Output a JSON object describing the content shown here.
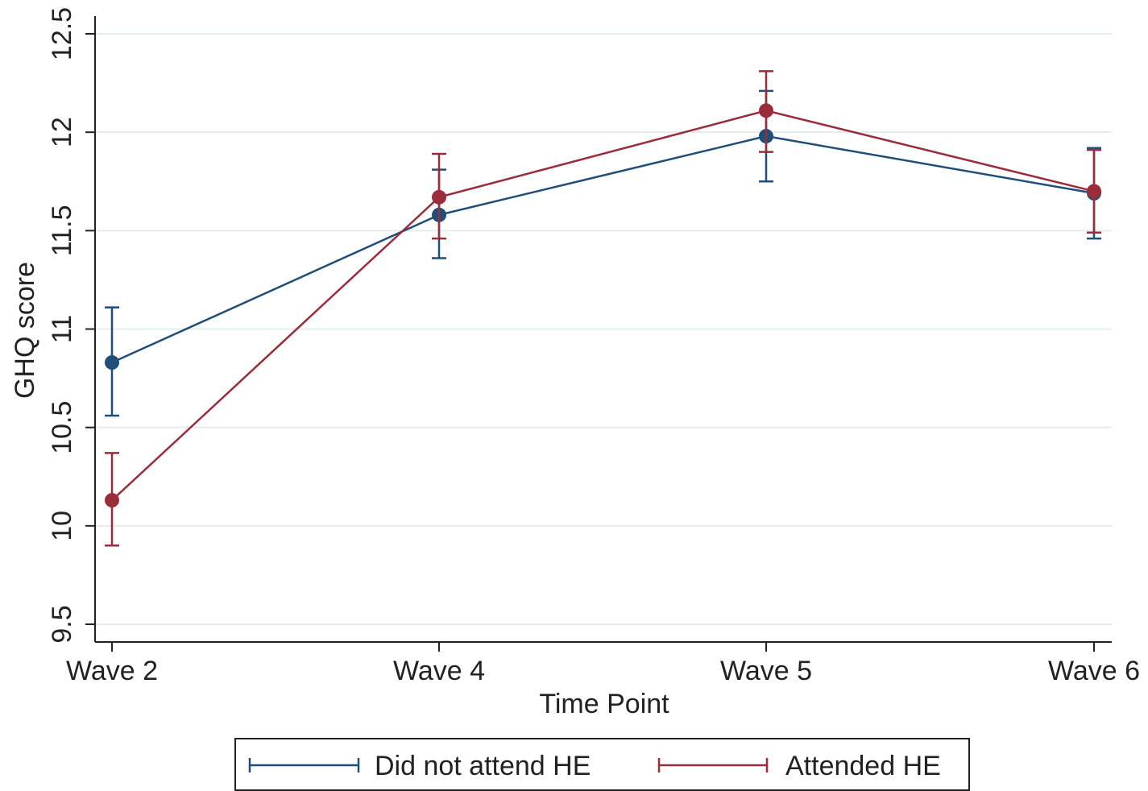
{
  "chart_data": {
    "type": "line",
    "title": "",
    "xlabel": "Time Point",
    "ylabel": "GHQ score",
    "categories": [
      "Wave 2",
      "Wave 4",
      "Wave 5",
      "Wave 6"
    ],
    "ylim": [
      9.5,
      12.5
    ],
    "yticks": [
      9.5,
      10,
      10.5,
      11,
      11.5,
      12,
      12.5
    ],
    "ytick_labels": [
      "9.5",
      "10",
      "10.5",
      "11",
      "11.5",
      "12",
      "12.5"
    ],
    "grid": true,
    "legend_position": "bottom",
    "error_bars": true,
    "series": [
      {
        "name": "Did not attend HE",
        "color": "#1f4e79",
        "values": [
          10.83,
          11.58,
          11.98,
          11.69
        ],
        "lower": [
          10.56,
          11.36,
          11.75,
          11.46
        ],
        "upper": [
          11.11,
          11.81,
          12.21,
          11.92
        ]
      },
      {
        "name": "Attended HE",
        "color": "#9b2d3a",
        "values": [
          10.13,
          11.67,
          12.11,
          11.7
        ],
        "lower": [
          9.9,
          11.46,
          11.9,
          11.49
        ],
        "upper": [
          10.37,
          11.89,
          12.31,
          11.91
        ]
      }
    ]
  }
}
